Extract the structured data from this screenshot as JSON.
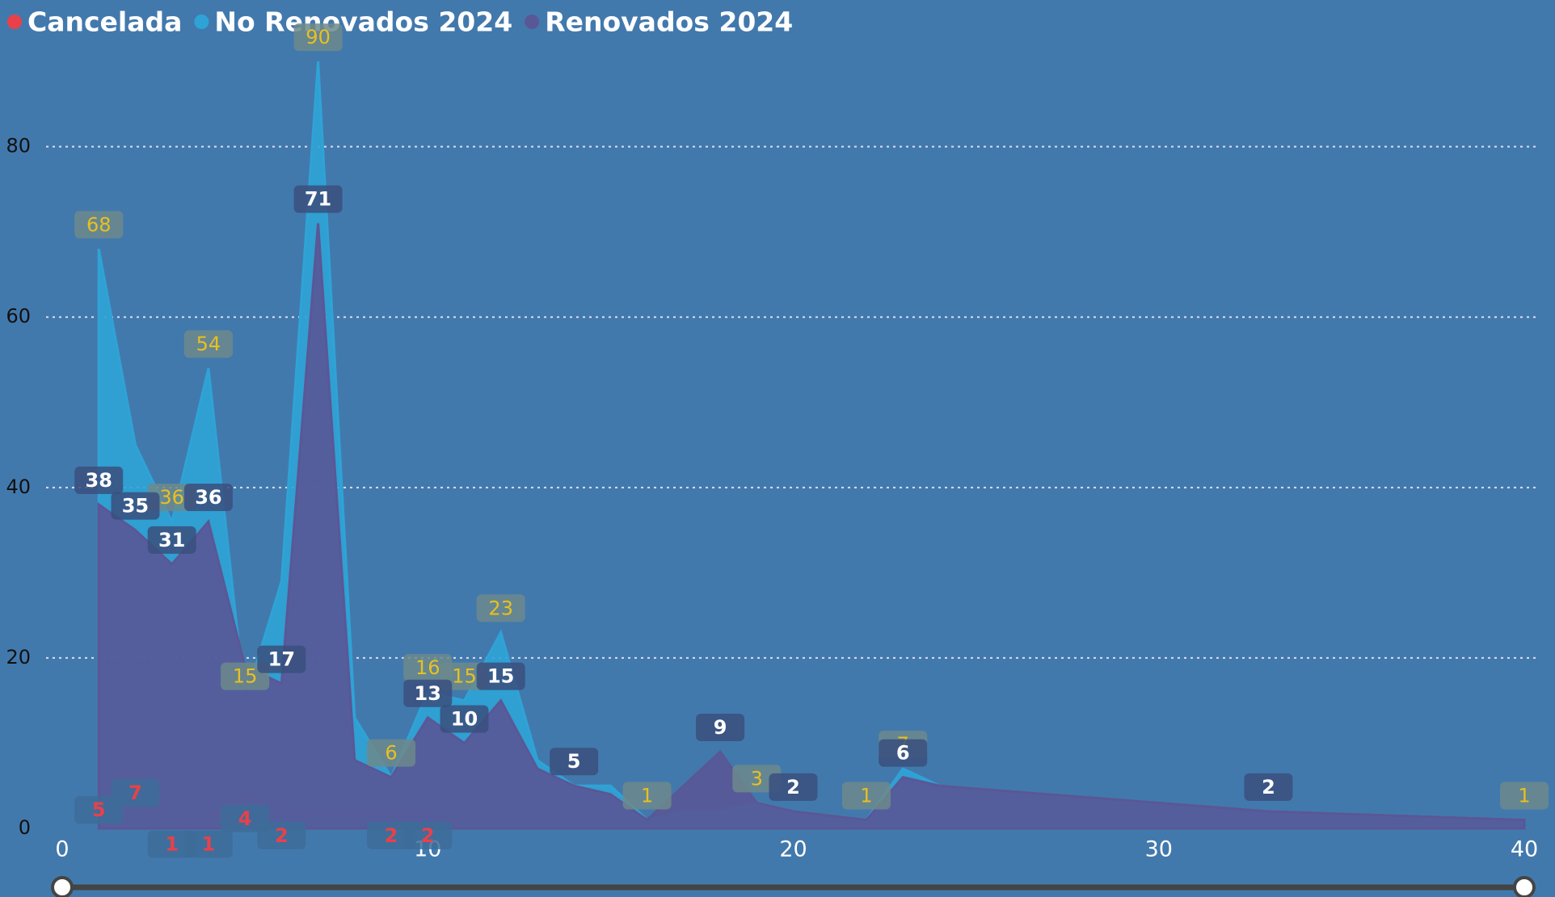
{
  "chart_data": {
    "type": "area",
    "xlim": [
      0,
      40
    ],
    "xticks": [
      0,
      10,
      20,
      30,
      40
    ],
    "ylim": [
      0,
      92
    ],
    "yticks": [
      0,
      20,
      40,
      60,
      80
    ],
    "grid": true,
    "series": [
      {
        "name": "Cancelada",
        "color": "#e8414a",
        "kind": "line",
        "x": [
          1,
          2,
          3,
          4,
          5,
          6,
          7,
          8,
          9,
          10
        ],
        "values": [
          5,
          7,
          1,
          1,
          4,
          2,
          2,
          2,
          2,
          2
        ],
        "value_labels": [
          "5",
          "7",
          "1",
          "1",
          "4",
          "2",
          null,
          null,
          "2",
          "2"
        ]
      },
      {
        "name": "No Renovados 2024",
        "color": "#2fa3d6",
        "kind": "area",
        "x": [
          1,
          2,
          3,
          4,
          5,
          6,
          7,
          8,
          9,
          10,
          11,
          12,
          13,
          14,
          15,
          16,
          17,
          18,
          19,
          20,
          22,
          23,
          24,
          33,
          40
        ],
        "values": [
          68,
          45,
          36,
          54,
          15,
          29,
          90,
          13,
          6,
          16,
          15,
          23,
          8,
          5,
          5,
          1,
          2,
          2,
          3,
          2,
          1,
          7,
          5,
          2,
          1
        ],
        "value_labels": [
          "68",
          null,
          "36",
          "54",
          "15",
          null,
          "90",
          null,
          "6",
          "16",
          "15",
          "23",
          null,
          null,
          null,
          "1",
          null,
          null,
          "3",
          null,
          "1",
          "7",
          null,
          null,
          "1"
        ]
      },
      {
        "name": "Renovados 2024",
        "color": "#5a5796",
        "kind": "area",
        "x": [
          1,
          2,
          3,
          4,
          5,
          6,
          7,
          8,
          9,
          10,
          11,
          12,
          13,
          14,
          15,
          16,
          17,
          18,
          19,
          20,
          22,
          23,
          24,
          33,
          40
        ],
        "values": [
          38,
          35,
          31,
          36,
          19,
          17,
          71,
          8,
          6,
          13,
          10,
          15,
          7,
          5,
          4,
          1,
          5,
          9,
          3,
          2,
          1,
          6,
          5,
          2,
          1
        ],
        "value_labels": [
          "38",
          "35",
          "31",
          "36",
          null,
          "17",
          "71",
          null,
          null,
          "13",
          "10",
          "15",
          null,
          "5",
          null,
          null,
          null,
          "9",
          null,
          "2",
          null,
          "6",
          null,
          "2",
          null
        ]
      }
    ]
  }
}
